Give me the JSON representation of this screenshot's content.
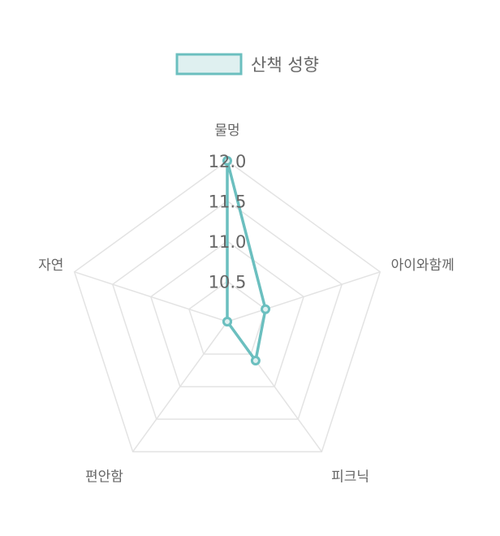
{
  "chart_data": {
    "type": "radar",
    "categories": [
      "물멍",
      "아이와함께",
      "피크닉",
      "편안함",
      "자연"
    ],
    "series": [
      {
        "name": "산책 성향",
        "values": [
          12.0,
          10.5,
          10.6,
          10.0,
          10.0
        ],
        "stroke_color": "#6bbfbf",
        "fill_color": "#dff0f0"
      }
    ],
    "r_min": 10.0,
    "r_max": 12.0,
    "ticks": [
      10.5,
      11.0,
      11.5,
      12.0
    ],
    "tick_labels": [
      "10.5",
      "11.0",
      "11.5",
      "12.0"
    ],
    "grid_color": "#e3e3e3",
    "legend_position": "top"
  }
}
